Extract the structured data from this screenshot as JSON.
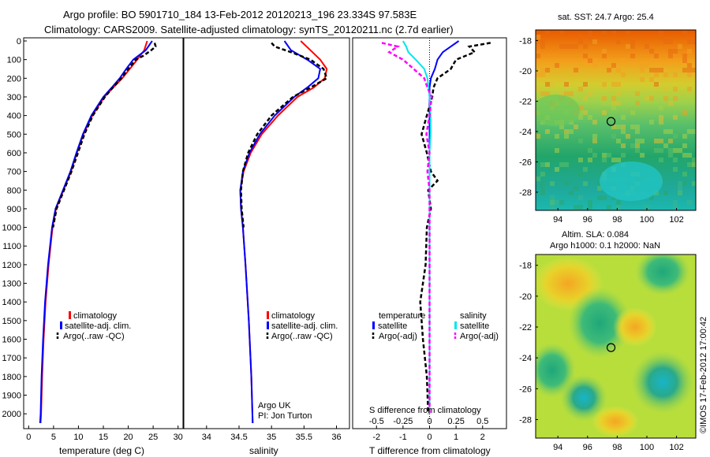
{
  "header": {
    "line1": "Argo profile: BO 5901710_184 13-Feb-2012 20120213_196 23.334S 97.583E",
    "line2": "Climatology: CARS2009. Satellite-adjusted climatology: synTS_20120211.nc (2.7d earlier)"
  },
  "colors": {
    "climatology": "#ff0000",
    "satellite": "#0000ff",
    "argo": "#000000",
    "sal_satellite": "#00e5ee",
    "sal_argo": "#ff00ff"
  },
  "chart_data": [
    {
      "id": "temperature",
      "type": "line",
      "xlabel": "temperature (deg C)",
      "ylabel": "",
      "xlim": [
        -1,
        31
      ],
      "ylim": [
        2100,
        0
      ],
      "xticks": [
        "0",
        "5",
        "10",
        "15",
        "20",
        "25",
        "30"
      ],
      "yticks": [
        "0",
        "100",
        "200",
        "300",
        "400",
        "500",
        "600",
        "700",
        "800",
        "900",
        "1000",
        "1100",
        "1200",
        "1300",
        "1400",
        "1500",
        "1600",
        "1700",
        "1800",
        "1900",
        "2000"
      ],
      "legend": [
        "climatology",
        "satellite-adj. clim.",
        "Argo(..raw -QC)"
      ],
      "series": [
        {
          "name": "climatology",
          "depth": [
            0,
            50,
            100,
            150,
            200,
            250,
            300,
            400,
            500,
            600,
            700,
            800,
            900,
            1000,
            1200,
            1400,
            1600,
            1800,
            2000,
            2050
          ],
          "values": [
            23.8,
            23.2,
            21.8,
            20.3,
            18.8,
            17.0,
            15.2,
            12.8,
            11.0,
            9.7,
            8.5,
            7.0,
            5.5,
            4.8,
            4.0,
            3.4,
            3.0,
            2.7,
            2.5,
            2.4
          ]
        },
        {
          "name": "satellite-adj. clim.",
          "depth": [
            0,
            50,
            100,
            150,
            200,
            250,
            300,
            400,
            500,
            600,
            700,
            800,
            900,
            1000,
            1200,
            1400,
            1600,
            1800,
            2000,
            2050
          ],
          "values": [
            24.8,
            23.5,
            21.0,
            19.6,
            18.3,
            16.7,
            15.0,
            12.6,
            10.9,
            9.6,
            8.4,
            6.9,
            5.4,
            4.7,
            3.9,
            3.3,
            2.9,
            2.6,
            2.4,
            2.3
          ]
        },
        {
          "name": "Argo(..raw -QC)",
          "depth": [
            10,
            30,
            50,
            80,
            100,
            150,
            200,
            250,
            300,
            400,
            500,
            600,
            700,
            800,
            900,
            1000
          ],
          "values": [
            25.3,
            25.5,
            24.6,
            23.0,
            21.5,
            20.0,
            18.6,
            16.9,
            15.3,
            12.9,
            11.2,
            9.9,
            8.6,
            7.1,
            5.6,
            4.9
          ]
        }
      ]
    },
    {
      "id": "salinity",
      "type": "line",
      "xlabel": "salinity",
      "xlim": [
        33.65,
        36.2
      ],
      "ylim": [
        2100,
        0
      ],
      "xticks": [
        "34",
        "34.5",
        "35",
        "35.5",
        "36"
      ],
      "legend": [
        "climatology",
        "satellite-adj. clim.",
        "Argo(..raw -QC)"
      ],
      "annotation": [
        "Argo UK",
        "PI: Jon Turton"
      ],
      "series": [
        {
          "name": "climatology",
          "depth": [
            0,
            50,
            100,
            150,
            200,
            250,
            300,
            400,
            500,
            600,
            700,
            800,
            900,
            1000,
            1200,
            1500,
            1800,
            2050
          ],
          "values": [
            35.45,
            35.6,
            35.75,
            35.85,
            35.82,
            35.65,
            35.4,
            35.1,
            34.85,
            34.68,
            34.57,
            34.52,
            34.53,
            34.56,
            34.6,
            34.65,
            34.69,
            34.71
          ]
        },
        {
          "name": "satellite-adj. clim.",
          "depth": [
            0,
            50,
            100,
            150,
            200,
            250,
            300,
            400,
            500,
            600,
            700,
            800,
            900,
            1000,
            1200,
            1500,
            1800,
            2050
          ],
          "values": [
            35.2,
            35.3,
            35.55,
            35.75,
            35.72,
            35.55,
            35.35,
            35.05,
            34.82,
            34.66,
            34.56,
            34.52,
            34.53,
            34.56,
            34.6,
            34.65,
            34.69,
            34.71
          ]
        },
        {
          "name": "Argo(..raw -QC)",
          "depth": [
            10,
            30,
            60,
            100,
            150,
            200,
            250,
            300,
            400,
            500,
            600,
            700,
            800,
            900,
            1000
          ],
          "values": [
            35.0,
            35.05,
            35.3,
            35.6,
            35.8,
            35.85,
            35.6,
            35.33,
            35.0,
            34.78,
            34.64,
            34.56,
            34.53,
            34.54,
            34.57
          ]
        }
      ]
    },
    {
      "id": "difference",
      "type": "line",
      "xlabel": "T difference from climatology",
      "xlabel_top": "S difference from climatology",
      "xlim": [
        -2.9,
        2.9
      ],
      "ylim": [
        2100,
        0
      ],
      "xticks": [
        "-2",
        "-1",
        "0",
        "1",
        "2"
      ],
      "xticks_top": [
        "-0.5",
        "-0.25",
        "0",
        "0.25",
        "0.5"
      ],
      "legend_temperature": {
        "title": "temperature",
        "items": [
          "satellite",
          "Argo(-adj)"
        ]
      },
      "legend_salinity": {
        "title": "salinity",
        "items": [
          "satellite",
          "Argo(-adj)"
        ]
      },
      "series": [
        {
          "name": "temperature satellite",
          "depth": [
            0,
            30,
            60,
            100,
            150,
            200,
            250,
            300,
            400,
            500,
            600,
            700,
            800,
            900,
            1000,
            1200,
            2000
          ],
          "values": [
            1.1,
            0.8,
            0.5,
            0.3,
            0.2,
            0.05,
            0.0,
            0.0,
            0.0,
            0.0,
            0.0,
            0.0,
            0.0,
            0.0,
            0.0,
            0.0,
            0.0
          ]
        },
        {
          "name": "temperature Argo(-adj)",
          "depth": [
            10,
            30,
            60,
            100,
            150,
            200,
            250,
            300,
            400,
            500,
            600,
            700,
            750,
            800,
            900,
            1000,
            1200,
            1400,
            1600,
            1800,
            2000
          ],
          "values": [
            2.3,
            1.5,
            1.7,
            1.0,
            0.8,
            0.3,
            0.15,
            0.1,
            -0.1,
            -0.3,
            -0.1,
            0.05,
            0.3,
            -0.05,
            0.05,
            -0.1,
            -0.15,
            -0.35,
            -0.25,
            -0.1,
            -0.05
          ]
        },
        {
          "name": "salinity satellite",
          "depth": [
            0,
            30,
            60,
            100,
            150,
            200,
            250,
            300,
            400,
            500,
            600,
            700,
            800,
            1000,
            2000
          ],
          "values": [
            -0.25,
            -0.22,
            -0.2,
            -0.13,
            -0.05,
            -0.02,
            -0.01,
            0.0,
            0.01,
            0.01,
            0.0,
            0.0,
            0.0,
            0.0,
            0.0
          ]
        },
        {
          "name": "salinity Argo(-adj)",
          "depth": [
            10,
            30,
            60,
            100,
            200,
            250,
            300,
            400,
            500,
            600,
            700,
            800,
            900,
            1000,
            1500,
            2000
          ],
          "values": [
            -0.45,
            -0.3,
            -0.38,
            -0.25,
            -0.05,
            -0.02,
            0.02,
            0.0,
            -0.03,
            0.0,
            -0.02,
            0.0,
            0.0,
            0.0,
            0.0,
            0.0
          ]
        }
      ]
    },
    {
      "id": "sst_map",
      "type": "heatmap",
      "title": "sat. SST: 24.7 Argo: 25.4",
      "xlim": [
        92.5,
        103.3
      ],
      "ylim": [
        -29.2,
        -17.3
      ],
      "xticks": [
        "94",
        "96",
        "98",
        "100",
        "102"
      ],
      "yticks": [
        "-18",
        "-20",
        "-22",
        "-24",
        "-26",
        "-28"
      ],
      "marker": {
        "lon": 97.583,
        "lat": -23.334
      }
    },
    {
      "id": "sla_map",
      "type": "heatmap",
      "title": "Altim. SLA: 0.084",
      "subtitle": "Argo h1000: 0.1 h2000: NaN",
      "xlim": [
        92.5,
        103.3
      ],
      "ylim": [
        -29.2,
        -17.3
      ],
      "xticks": [
        "94",
        "96",
        "98",
        "100",
        "102"
      ],
      "yticks": [
        "-18",
        "-20",
        "-22",
        "-24",
        "-26",
        "-28"
      ],
      "marker": {
        "lon": 97.583,
        "lat": -23.334
      }
    }
  ],
  "footer": {
    "credit": "©IMOS 17-Feb-2012 17:00:42"
  }
}
